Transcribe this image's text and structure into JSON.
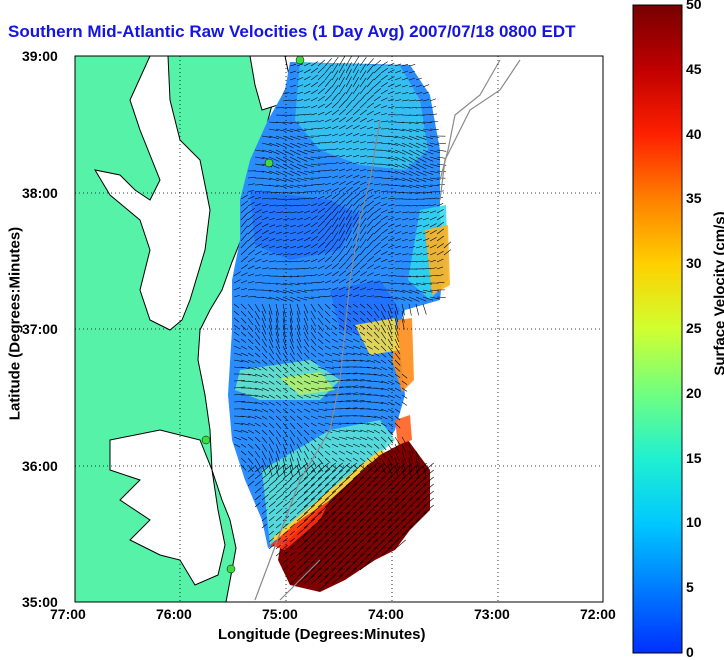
{
  "title": "Southern Mid-Atlantic Raw Velocities (1 Day Avg) 2007/07/18 0800 EDT",
  "xlabel": "Longitude (Degrees:Minutes)",
  "ylabel": "Latitude (Degrees:Minutes)",
  "colorbar": {
    "label": "Surface Velocity (cm/s)",
    "ticks": [
      "0",
      "5",
      "10",
      "15",
      "20",
      "25",
      "30",
      "35",
      "40",
      "45",
      "50"
    ],
    "min": 0,
    "max": 50
  },
  "xticks": [
    "77:00",
    "76:00",
    "75:00",
    "74:00",
    "73:00",
    "72:00"
  ],
  "yticks": [
    "39:00",
    "38:00",
    "37:00",
    "36:00",
    "35:00"
  ],
  "colors": {
    "land": "#55f2a8",
    "title": "#1414e6",
    "coast": "#000000",
    "bathymetry": "#8a8a8a",
    "station": "#3cdc3c"
  },
  "chart_data": {
    "type": "heatmap",
    "title": "Southern Mid-Atlantic Raw Velocities (1 Day Avg) 2007/07/18 0800 EDT",
    "xlabel": "Longitude (Degrees:Minutes)",
    "ylabel": "Latitude (Degrees:Minutes)",
    "xlim": [
      -77,
      -72
    ],
    "ylim": [
      35,
      39
    ],
    "value_label": "Surface Velocity (cm/s)",
    "value_range": [
      0,
      50
    ],
    "grid": true,
    "stations": [
      {
        "lon": -74.85,
        "lat": 38.95
      },
      {
        "lon": -75.15,
        "lat": 38.22
      },
      {
        "lon": -75.68,
        "lat": 36.18
      },
      {
        "lon": -75.48,
        "lat": 35.25
      }
    ]
  }
}
